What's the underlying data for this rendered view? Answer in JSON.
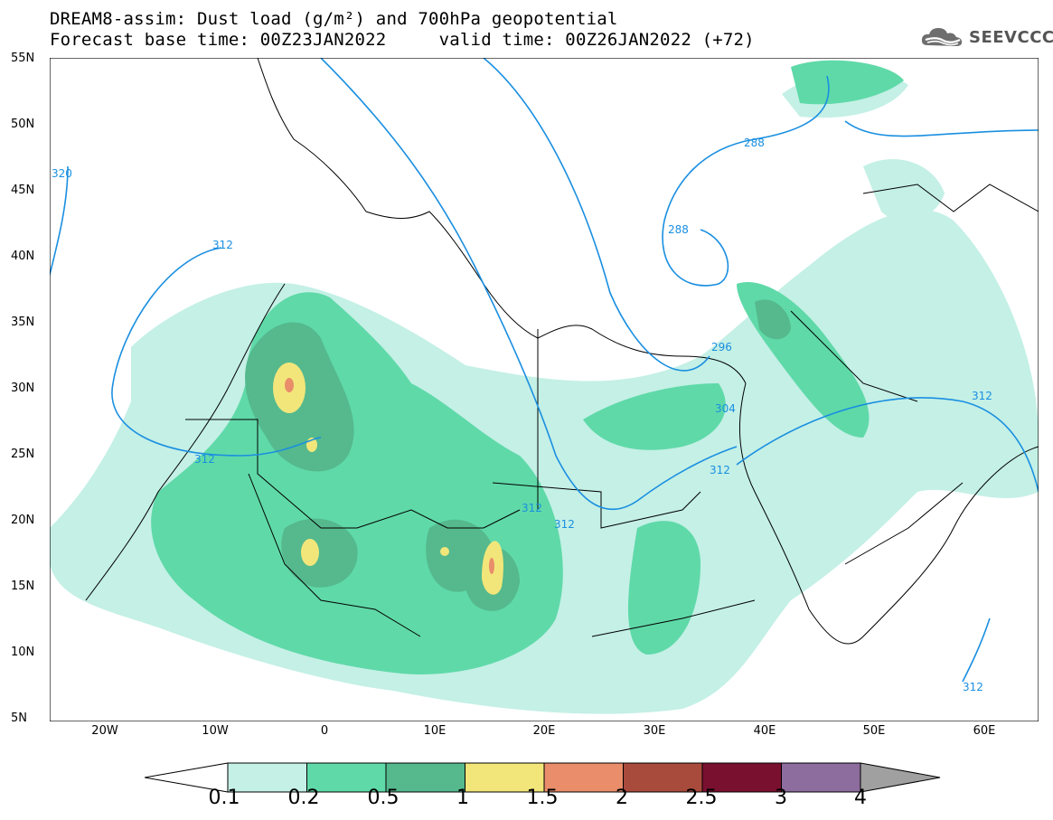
{
  "title": {
    "line1": "DREAM8-assim: Dust load (g/m²) and 700hPa geopotential",
    "line2": "Forecast base time: 00Z23JAN2022     valid time: 00Z26JAN2022 (+72)"
  },
  "logo": {
    "text": "SEEVCCC",
    "icon": "cloud-logo-icon"
  },
  "map": {
    "lon_range": [
      -25,
      65
    ],
    "lat_range": [
      5,
      55
    ],
    "lat_ticks": [
      "55N",
      "50N",
      "45N",
      "40N",
      "35N",
      "30N",
      "25N",
      "20N",
      "15N",
      "10N",
      "5N"
    ],
    "lon_ticks": [
      "20W",
      "10W",
      "0",
      "10E",
      "20E",
      "30E",
      "40E",
      "50E",
      "60E"
    ],
    "contour_labels": [
      "320",
      "312",
      "312",
      "312",
      "312",
      "312",
      "312",
      "288",
      "288",
      "296",
      "304",
      "312"
    ],
    "contour_color": "#1a8fe0"
  },
  "colorbar": {
    "labels": [
      "0.1",
      "0.2",
      "0.5",
      "1",
      "1.5",
      "2",
      "2.5",
      "3",
      "4"
    ],
    "colors": [
      "#c4f0e6",
      "#5fd9a8",
      "#55b98d",
      "#f2e67a",
      "#e98d6a",
      "#a84a3c",
      "#7a1030",
      "#8d6c9e",
      "#a0a0a0"
    ]
  }
}
